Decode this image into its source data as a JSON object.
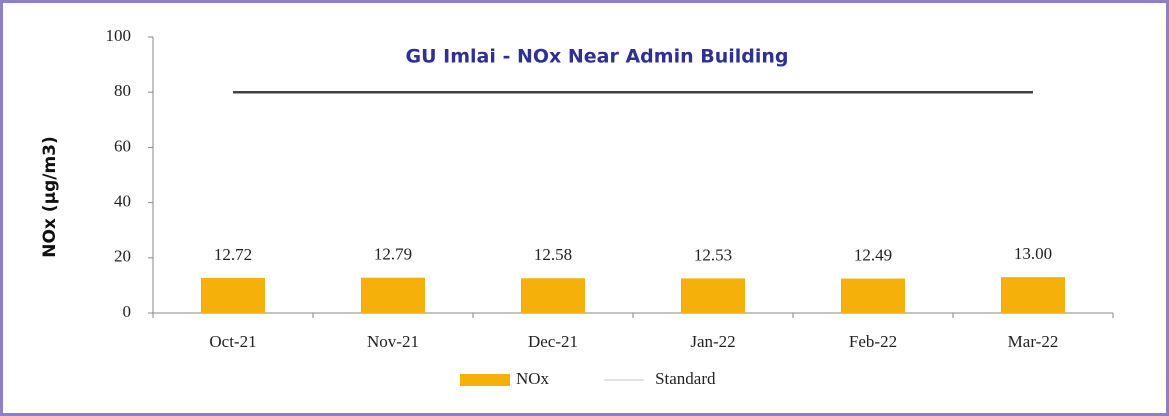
{
  "chart_data": {
    "type": "bar",
    "title": "GU Imlai - NOx  Near Admin Building",
    "y_label": "NOx (µg/m3)",
    "categories": [
      "Oct-21",
      "Nov-21",
      "Dec-21",
      "Jan-22",
      "Feb-22",
      "Mar-22"
    ],
    "series": [
      {
        "name": "NOx",
        "color": "#f5b10a",
        "values": [
          12.72,
          12.79,
          12.58,
          12.53,
          12.49,
          13.0
        ],
        "value_labels": [
          "12.72",
          "12.79",
          "12.58",
          "12.53",
          "12.49",
          "13.00"
        ]
      },
      {
        "name": "Standard",
        "color": "#404040",
        "type": "line",
        "values": [
          80,
          80,
          80,
          80,
          80,
          80
        ]
      }
    ],
    "ylim": [
      0,
      100
    ],
    "yticks": [
      0,
      20,
      40,
      60,
      80,
      100
    ],
    "grid": false,
    "legend": "bottom"
  }
}
